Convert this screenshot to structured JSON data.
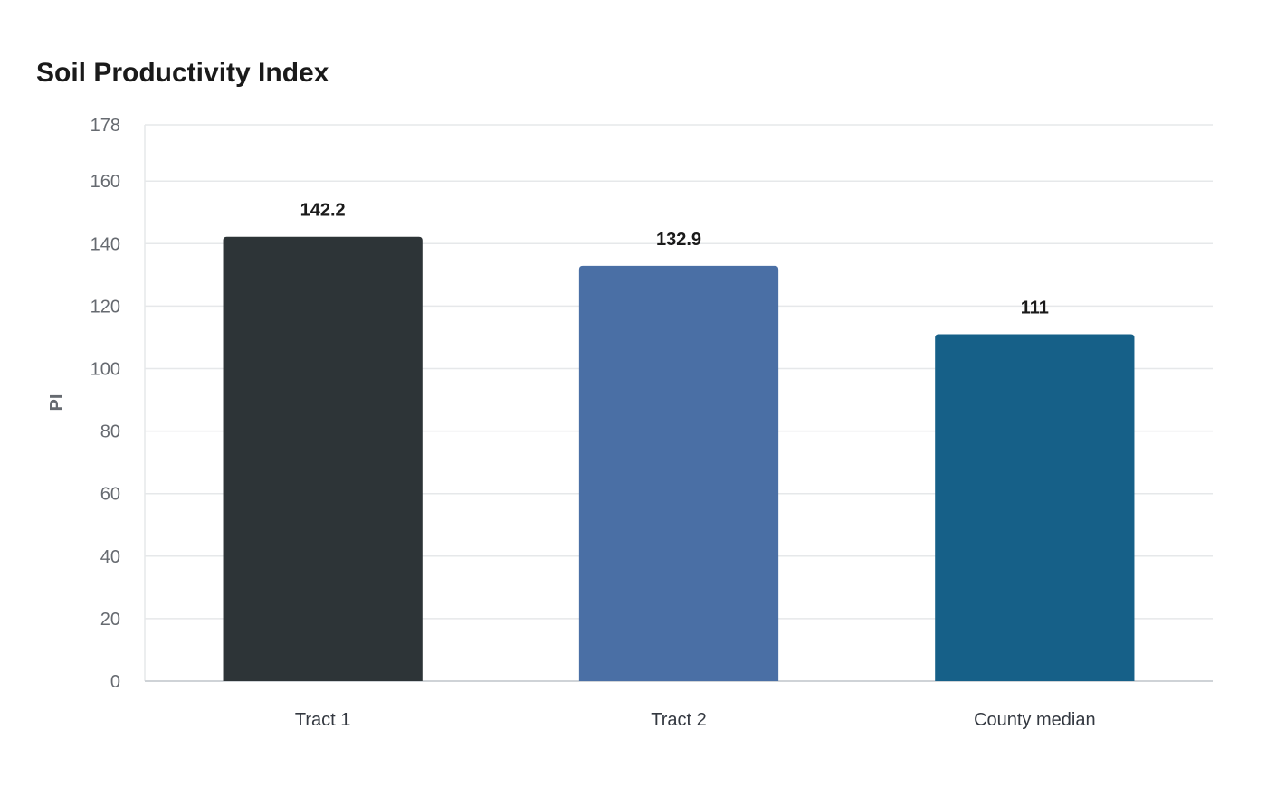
{
  "chart_data": {
    "type": "bar",
    "title": "Soil Productivity Index",
    "xlabel": "",
    "ylabel": "PI",
    "categories": [
      "Tract 1",
      "Tract 2",
      "County median"
    ],
    "values": [
      142.2,
      132.9,
      111
    ],
    "value_labels": [
      "142.2",
      "132.9",
      "111"
    ],
    "colors": [
      "#2d3437",
      "#4a6fa5",
      "#166088"
    ],
    "ylim": [
      0,
      178
    ],
    "yticks": [
      0,
      20,
      40,
      60,
      80,
      100,
      120,
      140,
      160,
      178
    ],
    "ytick_labels": [
      "0",
      "20",
      "40",
      "60",
      "80",
      "100",
      "120",
      "140",
      "160",
      "178"
    ],
    "grid": "horizontal",
    "legend": "none"
  }
}
